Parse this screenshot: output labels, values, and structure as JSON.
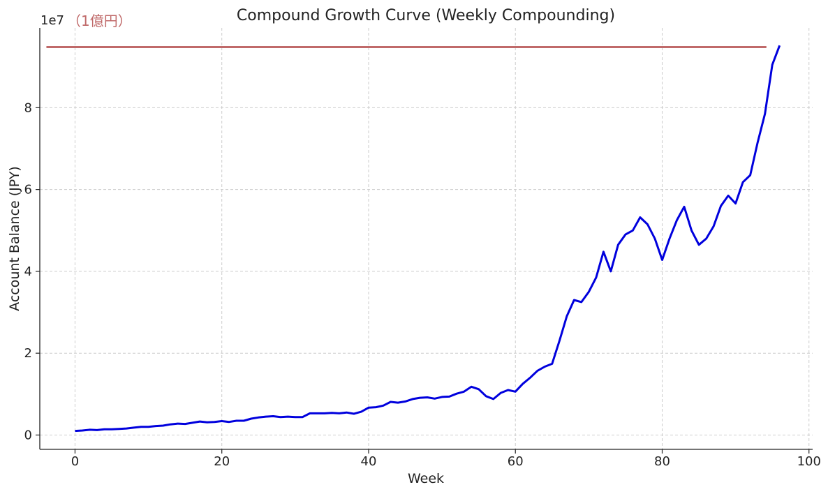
{
  "chart_data": {
    "type": "line",
    "title": "Compound Growth Curve (Weekly Compounding)",
    "xlabel": "Week",
    "ylabel": "Account Balance (JPY)",
    "y_offset_text": "1e7",
    "xlim": [
      -4.8,
      100.5
    ],
    "ylim": [
      -0.35,
      9.95
    ],
    "xticks": [
      0,
      20,
      40,
      60,
      80,
      100
    ],
    "yticks": [
      0,
      2,
      4,
      6,
      8
    ],
    "grid": true,
    "series_color": "#0000dd",
    "reference_line": {
      "y": 9.48,
      "x_start": -3.9,
      "x_end": 94.2,
      "label": "（1億円）",
      "color": "#c06a6a"
    },
    "series": [
      {
        "x": [
          0,
          1,
          2,
          3,
          4,
          5,
          6,
          7,
          8,
          9,
          10,
          11,
          12,
          13,
          14,
          15,
          16,
          17,
          18,
          19,
          20,
          21,
          22,
          23,
          24,
          25,
          26,
          27,
          28,
          29,
          30,
          31,
          32,
          33,
          34,
          35,
          36,
          37,
          38,
          39,
          40,
          41,
          42,
          43,
          44,
          45,
          46,
          47,
          48,
          49,
          50,
          51,
          52,
          53,
          54,
          55,
          56,
          57,
          58,
          59,
          60,
          61,
          62,
          63,
          64,
          65,
          66,
          67,
          68,
          69,
          70,
          71,
          72,
          73,
          74,
          75,
          76,
          77,
          78,
          79,
          80,
          81,
          82,
          83,
          84,
          85,
          86,
          87,
          88,
          89,
          90,
          91,
          92,
          93,
          94,
          95,
          96
        ],
        "values": [
          0.1,
          0.11,
          0.13,
          0.12,
          0.14,
          0.14,
          0.15,
          0.16,
          0.18,
          0.2,
          0.2,
          0.22,
          0.23,
          0.26,
          0.28,
          0.27,
          0.3,
          0.33,
          0.31,
          0.32,
          0.34,
          0.32,
          0.35,
          0.35,
          0.4,
          0.43,
          0.45,
          0.46,
          0.44,
          0.45,
          0.44,
          0.44,
          0.53,
          0.53,
          0.53,
          0.54,
          0.53,
          0.55,
          0.52,
          0.57,
          0.67,
          0.68,
          0.72,
          0.81,
          0.79,
          0.82,
          0.88,
          0.91,
          0.92,
          0.89,
          0.93,
          0.94,
          1.01,
          1.06,
          1.18,
          1.12,
          0.95,
          0.88,
          1.03,
          1.1,
          1.06,
          1.25,
          1.4,
          1.57,
          1.67,
          1.74,
          2.3,
          2.9,
          3.3,
          3.25,
          3.5,
          3.85,
          4.48,
          4.0,
          4.65,
          4.9,
          5.0,
          5.32,
          5.15,
          4.8,
          4.28,
          4.8,
          5.25,
          5.58,
          5.0,
          4.65,
          4.8,
          5.1,
          5.6,
          5.85,
          5.66,
          6.18,
          6.35,
          7.15,
          7.85,
          9.05,
          9.52
        ]
      }
    ]
  }
}
